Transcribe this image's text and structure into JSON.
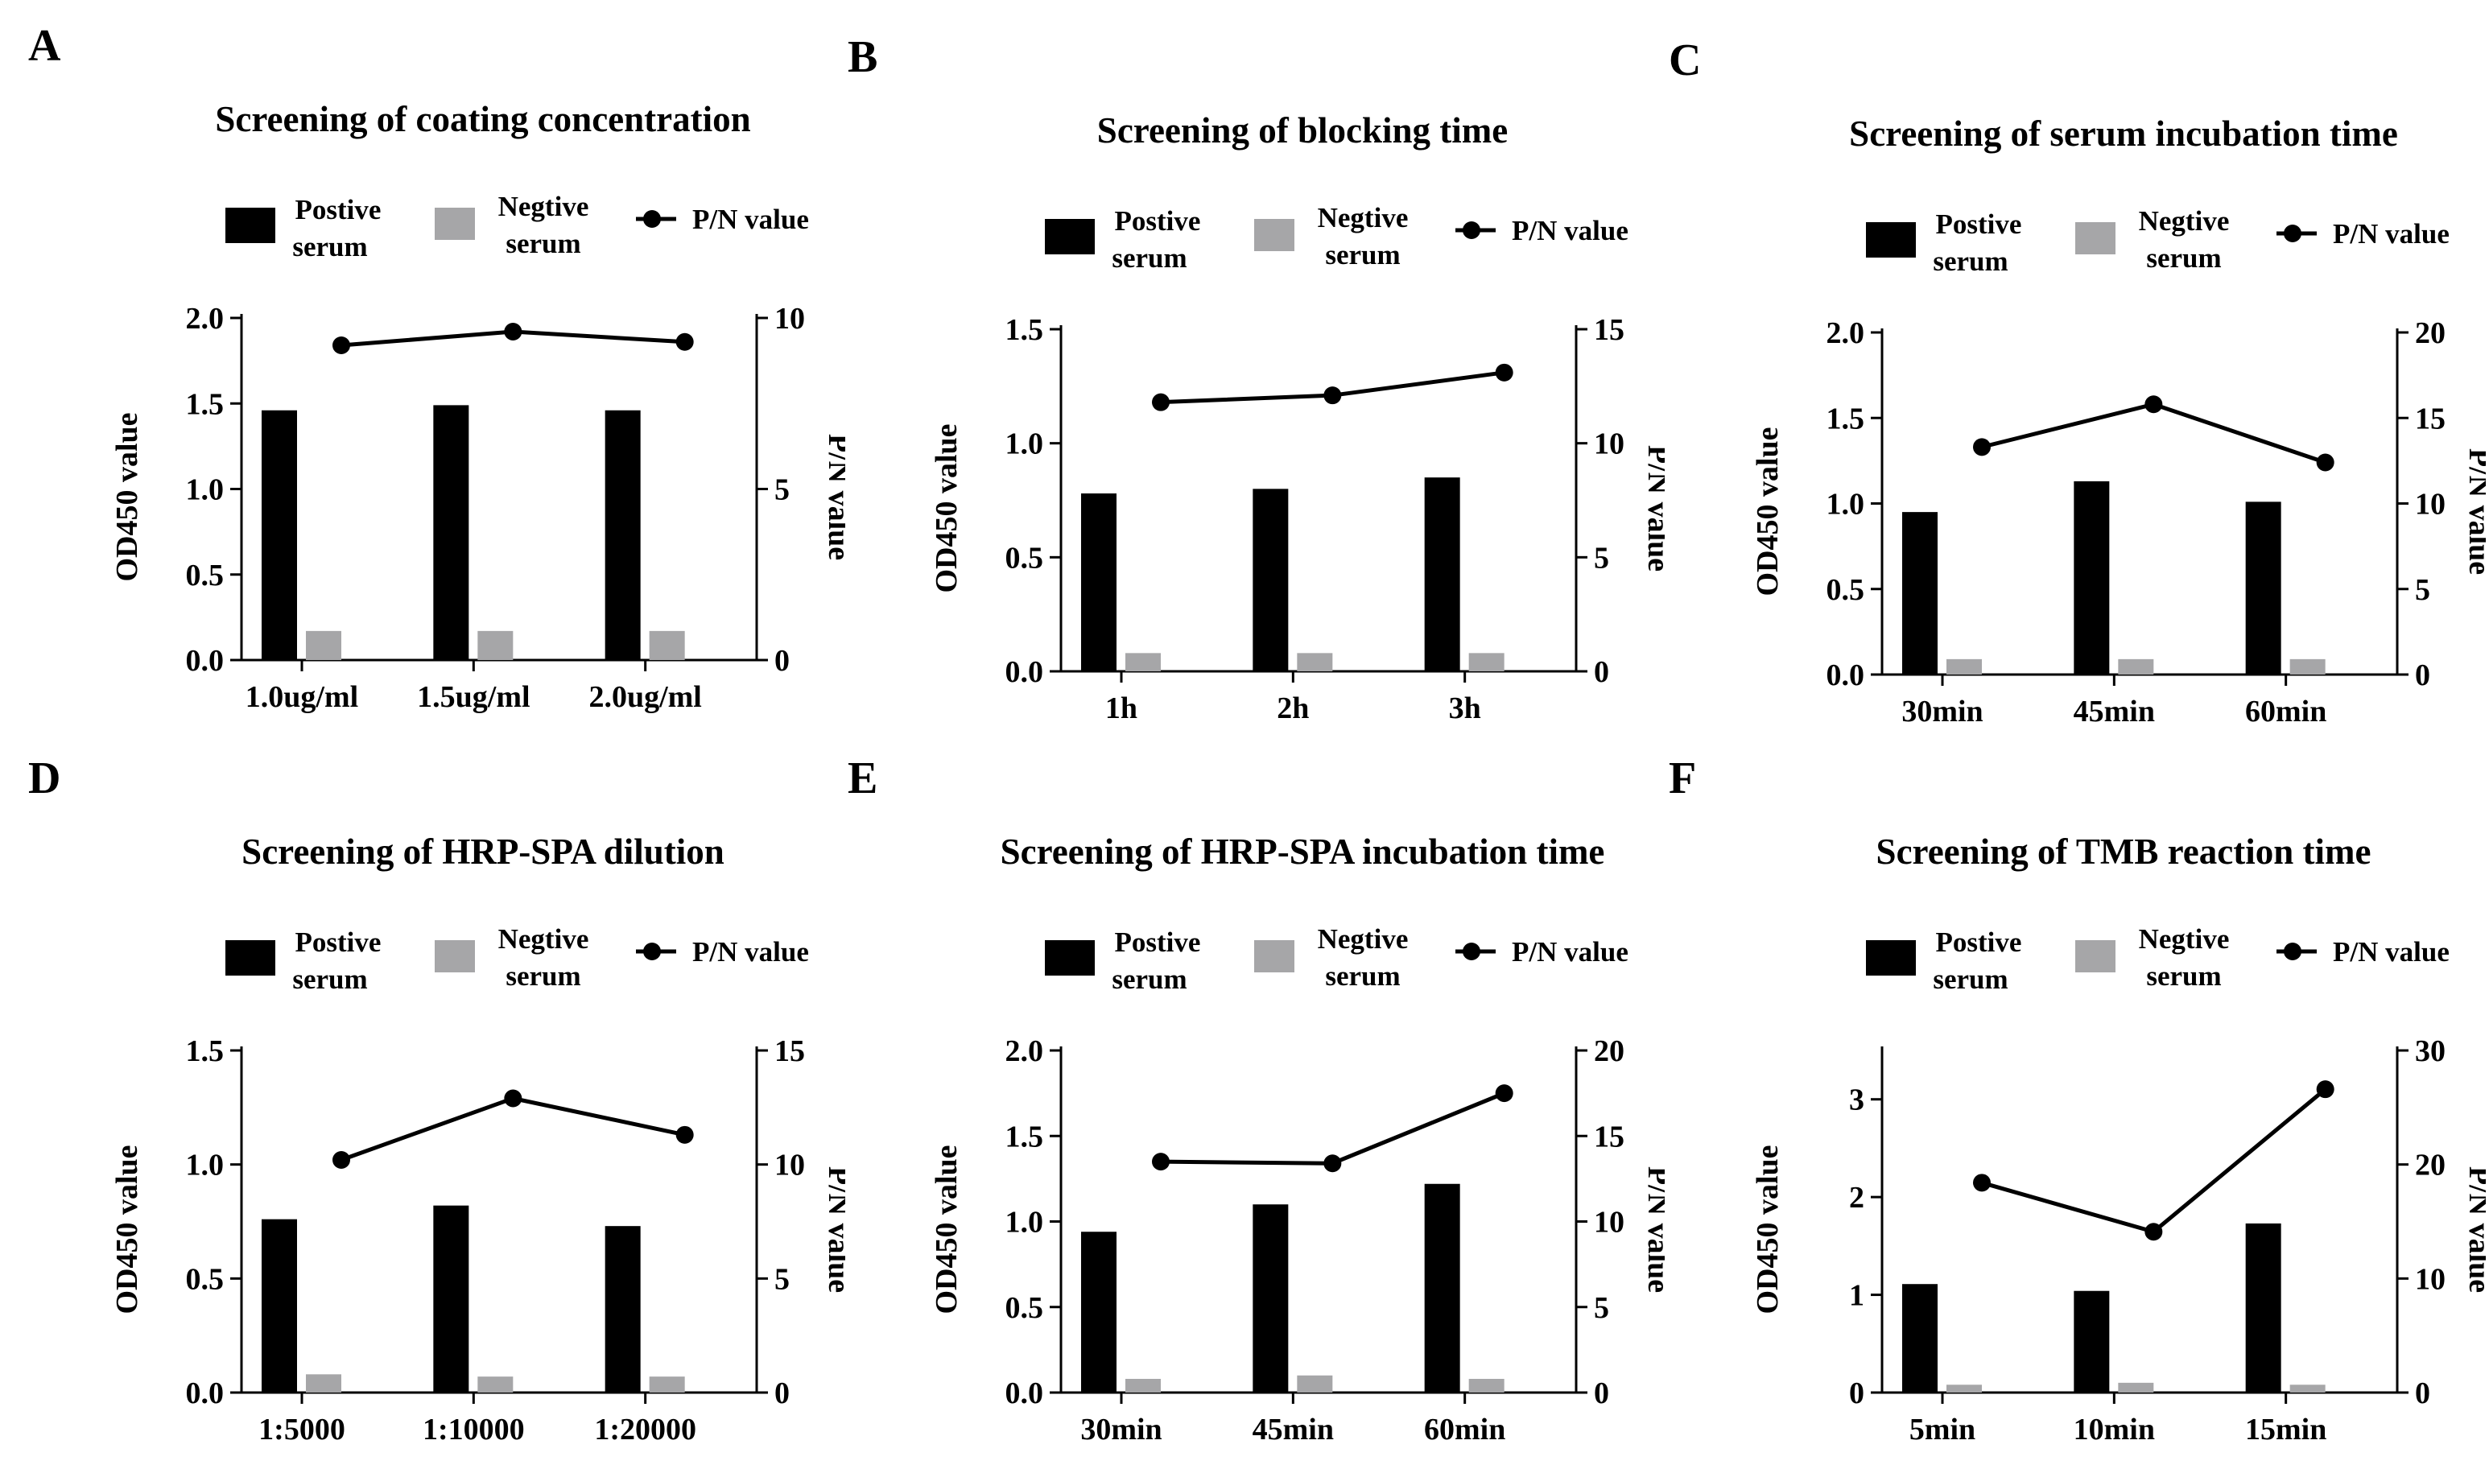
{
  "legend": {
    "positive": [
      "Postive",
      "serum"
    ],
    "negative": [
      "Negtive",
      "serum"
    ],
    "pn": "P/N value"
  },
  "colors": {
    "positive": "#000000",
    "negative": "#a6a6a8",
    "line": "#000000"
  },
  "chart_data": [
    {
      "panel": "A",
      "type": "bar",
      "title": "Screening of coating concentration",
      "categories": [
        "1.0ug/ml",
        "1.5ug/ml",
        "2.0ug/ml"
      ],
      "series": [
        {
          "name": "Postive serum",
          "values": [
            1.46,
            1.49,
            1.46
          ]
        },
        {
          "name": "Negtive serum",
          "values": [
            0.17,
            0.17,
            0.17
          ]
        },
        {
          "name": "P/N value",
          "axis": "right",
          "values": [
            9.2,
            9.6,
            9.3
          ]
        }
      ],
      "ylabel": "OD450 value",
      "y2label": "P/N value",
      "ylim": [
        0,
        2.0
      ],
      "yticks": [
        "0.0",
        "0.5",
        "1.0",
        "1.5",
        "2.0"
      ],
      "y2lim": [
        0,
        10
      ],
      "y2ticks": [
        "0",
        "5",
        "10"
      ]
    },
    {
      "panel": "B",
      "type": "bar",
      "title": "Screening of blocking time",
      "categories": [
        "1h",
        "2h",
        "3h"
      ],
      "series": [
        {
          "name": "Postive serum",
          "values": [
            0.78,
            0.8,
            0.85
          ]
        },
        {
          "name": "Negtive serum",
          "values": [
            0.08,
            0.08,
            0.08
          ]
        },
        {
          "name": "P/N value",
          "axis": "right",
          "values": [
            11.8,
            12.1,
            13.1
          ]
        }
      ],
      "ylabel": "OD450 value",
      "y2label": "P/N value",
      "ylim": [
        0,
        1.5
      ],
      "yticks": [
        "0.0",
        "0.5",
        "1.0",
        "1.5"
      ],
      "y2lim": [
        0,
        15
      ],
      "y2ticks": [
        "0",
        "5",
        "10",
        "15"
      ]
    },
    {
      "panel": "C",
      "type": "bar",
      "title": "Screening of serum incubation time",
      "categories": [
        "30min",
        "45min",
        "60min"
      ],
      "series": [
        {
          "name": "Postive serum",
          "values": [
            0.95,
            1.13,
            1.01
          ]
        },
        {
          "name": "Negtive serum",
          "values": [
            0.09,
            0.09,
            0.09
          ]
        },
        {
          "name": "P/N value",
          "axis": "right",
          "values": [
            13.3,
            15.8,
            12.4
          ]
        }
      ],
      "ylabel": "OD450 value",
      "y2label": "P/N value",
      "ylim": [
        0,
        2.0
      ],
      "yticks": [
        "0.0",
        "0.5",
        "1.0",
        "1.5",
        "2.0"
      ],
      "y2lim": [
        0,
        20
      ],
      "y2ticks": [
        "0",
        "5",
        "10",
        "15",
        "20"
      ]
    },
    {
      "panel": "D",
      "type": "bar",
      "title": "Screening of HRP-SPA dilution",
      "categories": [
        "1:5000",
        "1:10000",
        "1:20000"
      ],
      "series": [
        {
          "name": "Postive serum",
          "values": [
            0.76,
            0.82,
            0.73
          ]
        },
        {
          "name": "Negtive serum",
          "values": [
            0.08,
            0.07,
            0.07
          ]
        },
        {
          "name": "P/N value",
          "axis": "right",
          "values": [
            10.2,
            12.9,
            11.3
          ]
        }
      ],
      "ylabel": "OD450 value",
      "y2label": "P/N value",
      "ylim": [
        0,
        1.5
      ],
      "yticks": [
        "0.0",
        "0.5",
        "1.0",
        "1.5"
      ],
      "y2lim": [
        0,
        15
      ],
      "y2ticks": [
        "0",
        "5",
        "10",
        "15"
      ]
    },
    {
      "panel": "E",
      "type": "bar",
      "title": "Screening of HRP-SPA incubation time",
      "categories": [
        "30min",
        "45min",
        "60min"
      ],
      "series": [
        {
          "name": "Postive serum",
          "values": [
            0.94,
            1.1,
            1.22
          ]
        },
        {
          "name": "Negtive serum",
          "values": [
            0.08,
            0.1,
            0.08
          ]
        },
        {
          "name": "P/N value",
          "axis": "right",
          "values": [
            13.5,
            13.4,
            17.5
          ]
        }
      ],
      "ylabel": "OD450 value",
      "y2label": "P/N value",
      "ylim": [
        0,
        2.0
      ],
      "yticks": [
        "0.0",
        "0.5",
        "1.0",
        "1.5",
        "2.0"
      ],
      "y2lim": [
        0,
        20
      ],
      "y2ticks": [
        "0",
        "5",
        "10",
        "15",
        "20"
      ]
    },
    {
      "panel": "F",
      "type": "bar",
      "title": "Screening of TMB reaction time",
      "categories": [
        "5min",
        "10min",
        "15min"
      ],
      "series": [
        {
          "name": "Postive serum",
          "values": [
            1.11,
            1.04,
            1.73
          ]
        },
        {
          "name": "Negtive serum",
          "values": [
            0.08,
            0.1,
            0.08
          ]
        },
        {
          "name": "P/N value",
          "axis": "right",
          "values": [
            18.4,
            14.1,
            26.6
          ]
        }
      ],
      "ylabel": "OD450 value",
      "y2label": "P/N value",
      "ylim": [
        0,
        3.5
      ],
      "yticks": [
        "0",
        "1",
        "2",
        "3"
      ],
      "y2lim": [
        0,
        30
      ],
      "y2ticks": [
        "0",
        "10",
        "20",
        "30"
      ]
    }
  ]
}
